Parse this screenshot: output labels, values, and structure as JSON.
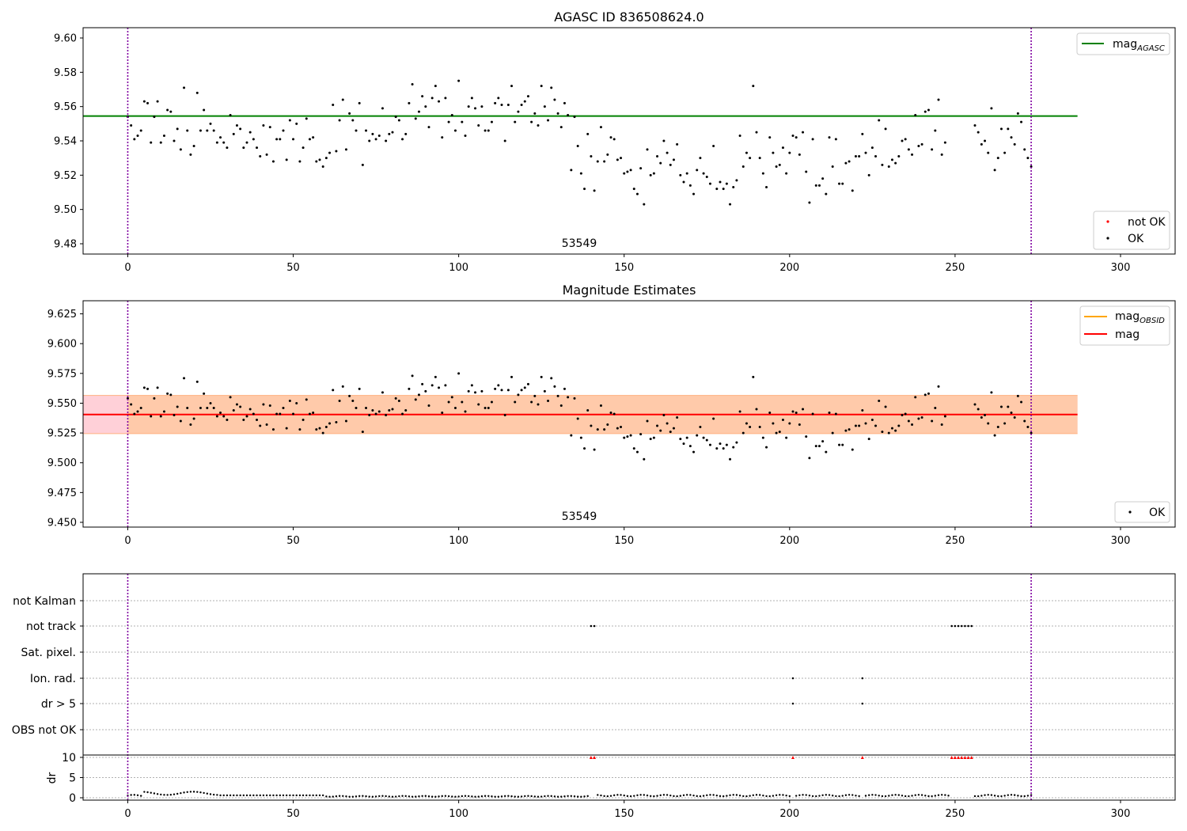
{
  "figure": {
    "panels": [
      {
        "title": "AGASC ID 836508624.0",
        "obsid_label": "53549",
        "yticks": [
          "9.48",
          "9.50",
          "9.52",
          "9.54",
          "9.56",
          "9.58",
          "9.60"
        ],
        "legend_top": [
          {
            "label": "mag",
            "sub": "AGASC",
            "color": "#008000"
          }
        ],
        "legend_bottom": [
          {
            "label": "not OK",
            "color": "#ff0000"
          },
          {
            "label": "OK",
            "color": "#000000"
          }
        ]
      },
      {
        "title": "Magnitude Estimates",
        "obsid_label": "53549",
        "yticks": [
          "9.450",
          "9.475",
          "9.500",
          "9.525",
          "9.550",
          "9.575",
          "9.600",
          "9.625"
        ],
        "legend_top": [
          {
            "label": "mag",
            "sub": "OBSID",
            "color": "#ffa500"
          },
          {
            "label": "mag",
            "sub": "",
            "color": "#ff0000"
          }
        ],
        "legend_bottom": [
          {
            "label": "OK",
            "color": "#000000"
          }
        ]
      },
      {
        "flag_labels": [
          "not Kalman",
          "not track",
          "Sat. pixel.",
          "Ion. rad.",
          "dr > 5",
          "OBS not OK"
        ],
        "dr_ylabel": "dr",
        "dr_yticks": [
          "0",
          "5",
          "10"
        ]
      }
    ],
    "xticks": [
      "0",
      "50",
      "100",
      "150",
      "200",
      "250",
      "300"
    ]
  },
  "chart_data": [
    {
      "type": "scatter",
      "title": "AGASC ID 836508624.0",
      "xlabel": "",
      "ylabel": "",
      "xlim": [
        -13.5,
        316.5
      ],
      "ylim": [
        9.474,
        9.606
      ],
      "grid": false,
      "legend": "top-right / bottom-right",
      "annotation": "53549",
      "vlines": [
        0,
        273
      ],
      "hlines": [
        {
          "name": "mag_AGASC",
          "y": 9.5545,
          "x_range": [
            -13.5,
            287
          ]
        }
      ],
      "series": [
        {
          "name": "OK",
          "x": "0..273",
          "y": [
            9.554,
            9.549,
            9.541,
            9.543,
            9.546,
            9.563,
            9.562,
            9.539,
            9.554,
            9.563,
            9.539,
            9.543,
            9.558,
            9.557,
            9.54,
            9.547,
            9.535,
            9.571,
            9.546,
            9.532,
            9.537,
            9.568,
            9.546,
            9.558,
            9.546,
            9.55,
            9.546,
            9.539,
            9.542,
            9.539,
            9.536,
            9.555,
            9.544,
            9.549,
            9.547,
            9.536,
            9.539,
            9.545,
            9.541,
            9.536,
            9.531,
            9.549,
            9.532,
            9.548,
            9.528,
            9.541,
            9.541,
            9.546,
            9.529,
            9.552,
            9.541,
            9.55,
            9.528,
            9.536,
            9.553,
            9.541,
            9.542,
            9.528,
            9.529,
            9.525,
            9.53,
            9.533,
            9.561,
            9.534,
            9.552,
            9.564,
            9.535,
            9.556,
            9.552,
            9.546,
            9.562,
            9.526,
            9.546,
            9.54,
            9.544,
            9.541,
            9.543,
            9.559,
            9.54,
            9.544,
            9.545,
            9.554,
            9.552,
            9.541,
            9.544,
            9.562,
            9.573,
            9.553,
            9.557,
            9.566,
            9.56,
            9.548,
            9.565,
            9.572,
            9.563,
            9.542,
            9.565,
            9.551,
            9.555,
            9.546,
            9.575,
            9.551,
            9.543,
            9.56,
            9.565,
            9.559,
            9.549,
            9.56,
            9.546,
            9.546,
            9.551,
            9.562,
            9.565,
            9.561,
            9.54,
            9.561,
            9.572,
            9.551,
            9.557,
            9.561,
            9.563,
            9.566,
            9.551,
            9.556,
            9.549,
            9.572,
            9.56,
            9.552,
            9.571,
            9.564,
            9.556,
            9.548,
            9.562,
            9.555,
            9.523,
            9.554,
            9.537,
            9.521,
            9.512,
            9.544,
            9.531,
            9.511,
            9.528,
            9.548,
            9.528,
            9.532,
            9.542,
            9.541,
            9.529,
            9.53,
            9.521,
            9.522,
            9.523,
            9.512,
            9.509,
            9.524,
            9.503,
            9.535,
            9.52,
            9.521,
            9.531,
            9.527,
            9.54,
            9.533,
            9.526,
            9.529,
            9.538,
            9.52,
            9.516,
            9.521,
            9.514,
            9.509,
            9.523,
            9.53,
            9.521,
            9.519,
            9.515,
            9.537,
            9.512,
            9.516,
            9.512,
            9.515,
            9.503,
            9.513,
            9.517,
            9.543,
            9.525,
            9.533,
            9.53,
            9.572,
            9.545,
            9.53,
            9.521,
            9.513,
            9.542,
            9.533,
            9.525,
            9.526,
            9.536,
            9.521,
            9.533,
            9.543,
            9.542,
            9.532,
            9.545,
            9.522,
            9.504,
            9.541,
            9.514,
            9.514,
            9.518,
            9.509,
            9.542,
            9.525,
            9.541,
            9.515,
            9.515,
            9.527,
            9.528,
            9.511,
            9.531,
            9.531,
            9.544,
            9.533,
            9.52,
            9.536,
            9.531,
            9.552,
            9.526,
            9.547,
            9.525,
            9.529,
            9.527,
            9.531,
            9.54,
            9.541,
            9.535,
            9.532,
            9.555,
            9.537,
            9.538,
            9.557,
            9.558,
            9.535,
            9.546,
            9.564,
            9.532,
            9.539,
            null,
            null,
            null,
            null,
            null,
            null,
            null,
            null,
            9.549,
            9.545,
            9.538,
            9.54,
            9.533,
            9.559,
            9.523,
            9.53,
            9.547,
            9.533,
            9.547,
            9.542,
            9.538,
            9.556,
            9.551,
            9.535,
            9.53,
            9.525
          ]
        },
        {
          "name": "not OK",
          "x": [],
          "y": []
        }
      ]
    },
    {
      "type": "scatter",
      "title": "Magnitude Estimates",
      "xlabel": "",
      "ylabel": "",
      "xlim": [
        -13.5,
        316.5
      ],
      "ylim": [
        9.446,
        9.636
      ],
      "grid": false,
      "legend": "top-right / bottom-right",
      "annotation": "53549",
      "vlines": [
        0,
        273
      ],
      "hlines": [
        {
          "name": "mag",
          "y": 9.5405,
          "x_range": [
            -13.5,
            287
          ]
        }
      ],
      "bands": [
        {
          "name": "mag band",
          "y0": 9.5245,
          "y1": 9.5565,
          "color": "#ffd0d8"
        },
        {
          "name": "mag_OBSID band",
          "y0": 9.5245,
          "y1": 9.5565,
          "x_range": [
            0,
            273
          ],
          "color": "#ffc9a5"
        }
      ],
      "series": [
        {
          "name": "OK",
          "x": "0..273",
          "same_values_as": "panel 1 OK series"
        }
      ]
    },
    {
      "type": "scatter",
      "title": "",
      "ylabel": "dr",
      "xlim": [
        -13.5,
        316.5
      ],
      "ylim": [
        0,
        10
      ],
      "vlines": [
        0,
        273
      ],
      "flags": {
        "not Kalman": [],
        "not track": [
          140,
          141,
          249,
          250,
          251,
          252,
          253,
          254,
          255
        ],
        "Sat. pixel.": [],
        "Ion. rad.": [
          201,
          222
        ],
        "dr > 5": [
          201,
          222
        ],
        "OBS not OK": []
      },
      "dr_clipped_at_10": [
        140,
        141,
        201,
        222,
        249,
        250,
        251,
        252,
        253,
        254,
        255
      ],
      "dr_values_approx": "0.3-1.6 for all other points 0..273; gap 249-255"
    }
  ]
}
